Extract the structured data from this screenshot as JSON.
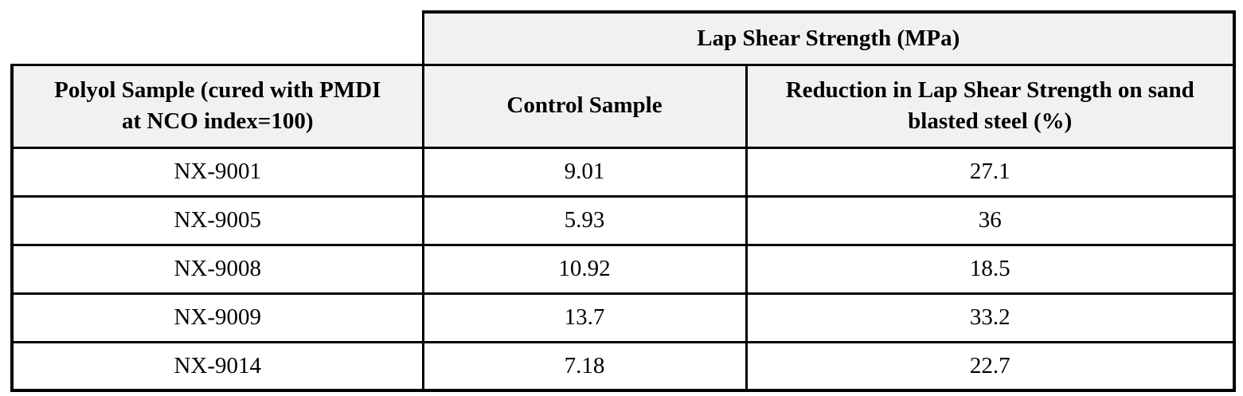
{
  "colors": {
    "header_bg": "#f1f1f1",
    "border": "#000000",
    "page_bg": "#ffffff"
  },
  "table": {
    "span_header": "Lap Shear Strength (MPa)",
    "column_headers": {
      "polyol": "Polyol Sample (cured with PMDI at NCO index=100)",
      "control": "Control Sample",
      "reduction": "Reduction in Lap Shear Strength on sand blasted steel (%)"
    },
    "rows": [
      {
        "sample": "NX-9001",
        "control": "9.01",
        "reduction": "27.1"
      },
      {
        "sample": "NX-9005",
        "control": "5.93",
        "reduction": "36"
      },
      {
        "sample": "NX-9008",
        "control": "10.92",
        "reduction": "18.5"
      },
      {
        "sample": "NX-9009",
        "control": "13.7",
        "reduction": "33.2"
      },
      {
        "sample": "NX-9014",
        "control": "7.18",
        "reduction": "22.7"
      }
    ]
  }
}
